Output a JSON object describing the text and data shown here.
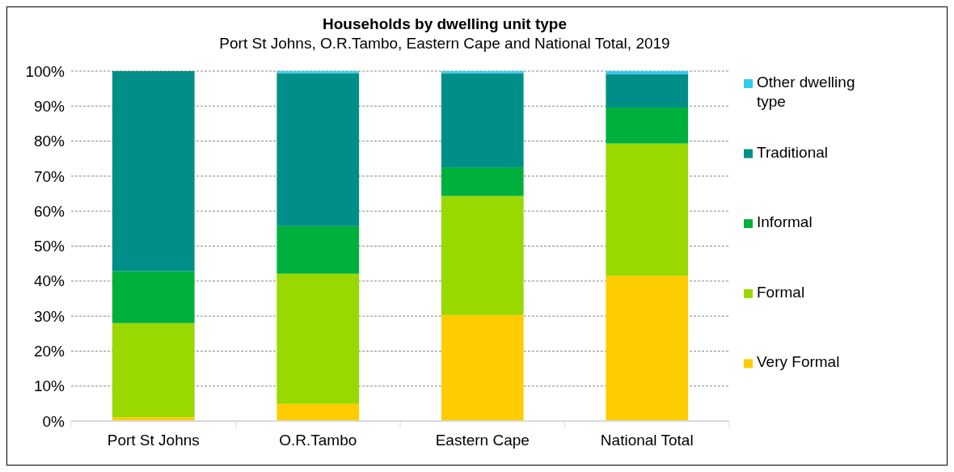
{
  "chart_data": {
    "type": "bar",
    "stacked": true,
    "title": "Households by dwelling unit type",
    "subtitle": "Port St Johns, O.R.Tambo, Eastern Cape and National Total, 2019",
    "categories": [
      "Port St Johns",
      "O.R.Tambo",
      "Eastern Cape",
      "National Total"
    ],
    "series": [
      {
        "name": "Very Formal",
        "color": "#ffcc00",
        "values": [
          1.1,
          4.9,
          30.3,
          41.5
        ]
      },
      {
        "name": "Formal",
        "color": "#99d800",
        "values": [
          26.9,
          37.2,
          34.0,
          37.8
        ]
      },
      {
        "name": "Informal",
        "color": "#00b03c",
        "values": [
          14.8,
          13.6,
          8.2,
          10.3
        ]
      },
      {
        "name": "Traditional",
        "color": "#008f88",
        "values": [
          57.2,
          43.7,
          26.9,
          9.6
        ]
      },
      {
        "name": "Other dwelling type",
        "color": "#33ccf0",
        "values": [
          0,
          0.6,
          0.6,
          0.8
        ]
      }
    ],
    "ylim": [
      0,
      100
    ],
    "yticks": [
      {
        "value": 0,
        "label": "0%"
      },
      {
        "value": 10,
        "label": "10%"
      },
      {
        "value": 20,
        "label": "20%"
      },
      {
        "value": 30,
        "label": "30%"
      },
      {
        "value": 40,
        "label": "40%"
      },
      {
        "value": 50,
        "label": "50%"
      },
      {
        "value": 60,
        "label": "60%"
      },
      {
        "value": 70,
        "label": "70%"
      },
      {
        "value": 80,
        "label": "80%"
      },
      {
        "value": 90,
        "label": "90%"
      },
      {
        "value": 100,
        "label": "100%"
      }
    ],
    "grid": "y",
    "legend": "right"
  }
}
